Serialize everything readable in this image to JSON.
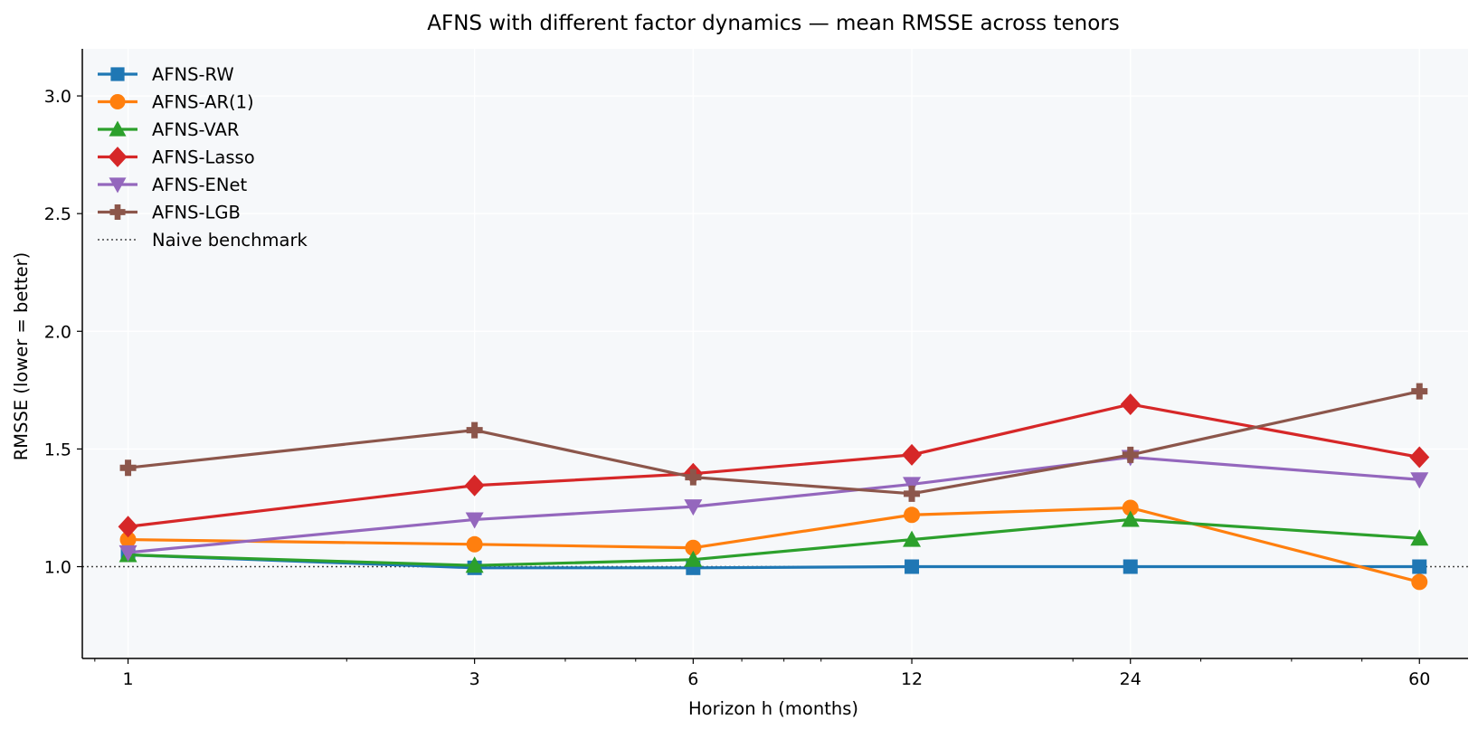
{
  "chart_data": {
    "type": "line",
    "title": "AFNS with different factor dynamics — mean RMSSE across tenors",
    "xlabel": "Horizon h (months)",
    "ylabel": "RMSSE (lower = better)",
    "x_scale": "log",
    "x": [
      1,
      3,
      6,
      12,
      24,
      60
    ],
    "x_tick_labels": [
      "1",
      "3",
      "6",
      "12",
      "24",
      "60"
    ],
    "ylim": [
      0.61,
      3.2
    ],
    "y_ticks": [
      1.0,
      1.5,
      2.0,
      2.5,
      3.0
    ],
    "y_tick_labels": [
      "1.0",
      "1.5",
      "2.0",
      "2.5",
      "3.0"
    ],
    "grid": true,
    "legend_position": "top-left",
    "series": [
      {
        "name": "AFNS-RW",
        "color": "#1f77b4",
        "marker": "square",
        "values": [
          1.05,
          0.995,
          0.995,
          1.0,
          1.0,
          1.0
        ]
      },
      {
        "name": "AFNS-AR(1)",
        "color": "#ff7f0e",
        "marker": "circle",
        "values": [
          1.115,
          1.095,
          1.08,
          1.22,
          1.25,
          0.935
        ]
      },
      {
        "name": "AFNS-VAR",
        "color": "#2ca02c",
        "marker": "triangle-up",
        "values": [
          1.05,
          1.005,
          1.03,
          1.115,
          1.2,
          1.12
        ]
      },
      {
        "name": "AFNS-Lasso",
        "color": "#d62728",
        "marker": "diamond",
        "values": [
          1.17,
          1.345,
          1.395,
          1.475,
          1.69,
          1.465
        ]
      },
      {
        "name": "AFNS-ENet",
        "color": "#9467bd",
        "marker": "triangle-down",
        "values": [
          1.06,
          1.2,
          1.255,
          1.35,
          1.465,
          1.37
        ]
      },
      {
        "name": "AFNS-LGB",
        "color": "#8c564b",
        "marker": "plus",
        "values": [
          1.42,
          1.58,
          1.38,
          1.31,
          1.475,
          1.745
        ]
      }
    ],
    "reference_line": {
      "name": "Naive benchmark",
      "y": 1.0,
      "color": "#444444",
      "style": "dotted"
    }
  }
}
